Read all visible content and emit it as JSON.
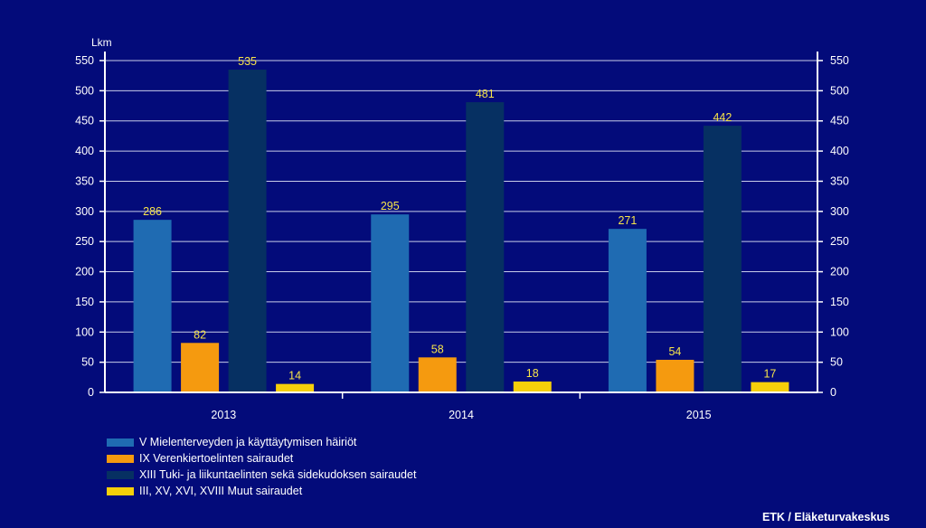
{
  "chart_data": {
    "type": "bar",
    "ylabel": "Lkm",
    "ylim": [
      0,
      550
    ],
    "yticks": [
      0,
      50,
      100,
      150,
      200,
      250,
      300,
      350,
      400,
      450,
      500,
      550
    ],
    "grid": true,
    "categories": [
      "2013",
      "2014",
      "2015"
    ],
    "series": [
      {
        "name": "V Mielenterveyden ja käyttäytymisen häiriöt",
        "color": "#1f6bb2",
        "values": [
          286,
          295,
          271
        ]
      },
      {
        "name": "IX Verenkiertoelinten sairaudet",
        "color": "#f59a0f",
        "values": [
          82,
          58,
          54
        ]
      },
      {
        "name": "XIII Tuki- ja liikuntaelinten sekä sidekudoksen sairaudet",
        "color": "#063062",
        "values": [
          535,
          481,
          442
        ]
      },
      {
        "name": "III, XV, XVI, XVIII Muut sairaudet",
        "color": "#f6cf0a",
        "values": [
          14,
          18,
          17
        ]
      }
    ],
    "label_color": "#f7e44a",
    "legend_position": "bottom-left"
  },
  "source": "ETK / Eläketurvakeskus"
}
